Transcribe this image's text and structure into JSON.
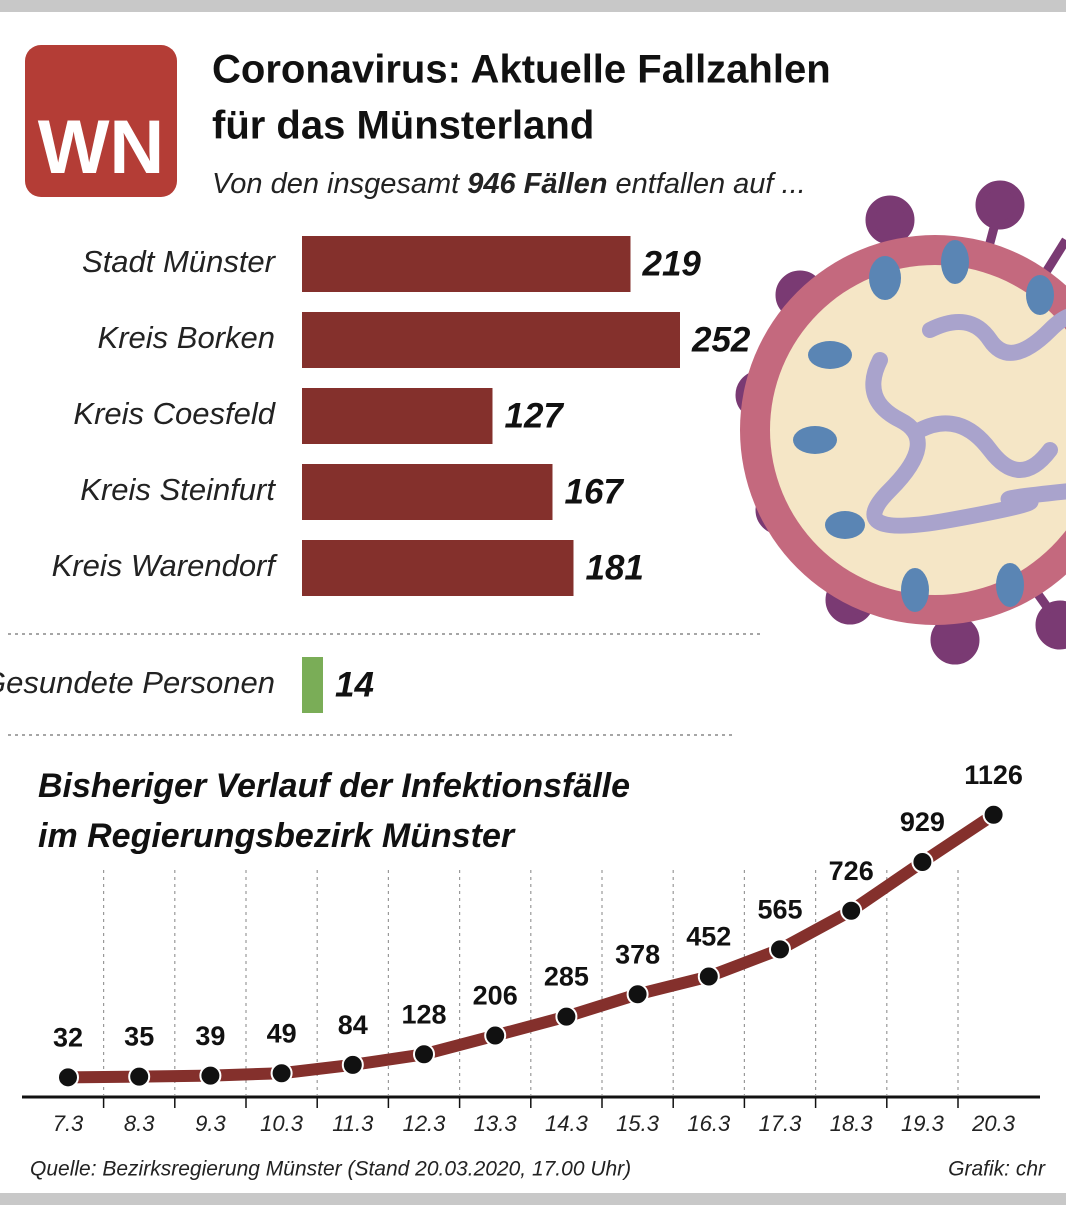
{
  "logo": "WN",
  "title": [
    "Coronavirus: Aktuelle Fallzahlen",
    "für das Münsterland"
  ],
  "subtitle": [
    "Von den insgesamt",
    "946 Fällen",
    "entfallen auf ..."
  ],
  "chart_data": [
    {
      "type": "hbar",
      "categories": [
        "Stadt Münster",
        "Kreis Borken",
        "Kreis Coesfeld",
        "Kreis Steinfurt",
        "Kreis Warendorf"
      ],
      "values": [
        219,
        252,
        127,
        167,
        181
      ],
      "color": "#84302c"
    },
    {
      "type": "hbar",
      "categories": [
        "Gesundete Personen"
      ],
      "values": [
        14
      ],
      "color": "#7aad57"
    },
    {
      "type": "line",
      "title": [
        "Bisheriger Verlauf der Infektionsfälle",
        "im Regierungsbezirk Münster"
      ],
      "categories": [
        "7.3",
        "8.3",
        "9.3",
        "10.3",
        "11.3",
        "12.3",
        "13.3",
        "14.3",
        "15.3",
        "16.3",
        "17.3",
        "18.3",
        "19.3",
        "20.3"
      ],
      "values": [
        32,
        35,
        39,
        49,
        84,
        128,
        206,
        285,
        378,
        452,
        565,
        726,
        929,
        1126
      ],
      "color": "#84302c"
    }
  ],
  "source": "Quelle: Bezirksregierung Münster (Stand 20.03.2020, 17.00 Uhr)",
  "credit": "Grafik: chr"
}
